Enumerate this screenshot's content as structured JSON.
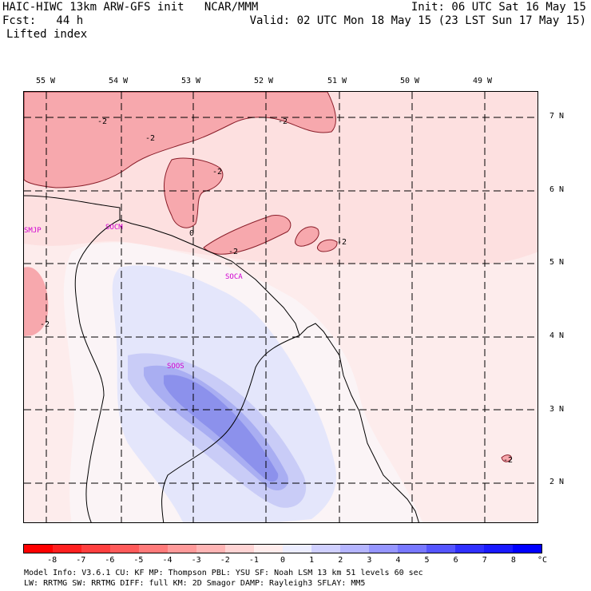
{
  "header": {
    "left_line1": "HAIC-HIWC 13km ARW-GFS init   NCAR/MMM",
    "left_line2": "Fcst:   44 h",
    "field_name": "Lifted index",
    "init": "Init: 06 UTC Sat 16 May 15",
    "valid": "Valid: 02 UTC Mon 18 May 15 (23 LST Sun 17 May 15)"
  },
  "map": {
    "lon_labels": [
      "55 W",
      "54 W",
      "53 W",
      "52 W",
      "51 W",
      "50 W",
      "49 W"
    ],
    "lat_labels": [
      "7 N",
      "6 N",
      "5 N",
      "4 N",
      "3 N",
      "2 N"
    ],
    "stations": [
      "SMJP",
      "SOCM",
      "SOCA",
      "SOOS"
    ],
    "contour_labels": [
      "-2",
      "-2",
      "-2",
      "-2",
      "-2",
      "-2",
      "-2",
      "-2",
      "0"
    ]
  },
  "colorbar": {
    "labels": [
      "-8",
      "-7",
      "-6",
      "-5",
      "-4",
      "-3",
      "-2",
      "-1",
      "0",
      "1",
      "2",
      "3",
      "4",
      "5",
      "6",
      "7",
      "8"
    ],
    "unit": "°C",
    "colors": [
      "#ff0000",
      "#ff2020",
      "#ff3f3f",
      "#ff5a5a",
      "#ff7a7a",
      "#ff9a9a",
      "#ffb5b5",
      "#ffd4d4",
      "#ffecec",
      "#ecedff",
      "#d0d0ff",
      "#b5b5ff",
      "#9696ff",
      "#7878ff",
      "#5555ff",
      "#3030ff",
      "#1a1aff",
      "#0000ff"
    ]
  },
  "footer": {
    "line1": "Model Info: V3.6.1   CU: KF      MP: Thompson    PBL: YSU      SF: Noah LSM     13 km   51 levels   60 sec",
    "line2": "           LW: RRTMG   SW: RRTMG  DIFF: full    KM: 2D Smagor DAMP: Rayleigh3  SFLAY: MM5"
  }
}
